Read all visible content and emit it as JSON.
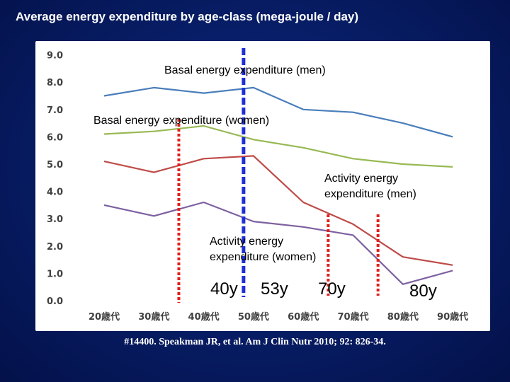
{
  "slide": {
    "title": "Average energy expenditure by age-class (mega-joule / day)",
    "citation": "#14400. Speakman JR, et al. Am J Clin Nutr 2010; 92: 826-34."
  },
  "chart_data": {
    "type": "line",
    "categories": [
      "20歳代",
      "30歳代",
      "40歳代",
      "50歳代",
      "60歳代",
      "70歳代",
      "80歳代",
      "90歳代"
    ],
    "ylim": [
      0,
      9
    ],
    "yticks": [
      "0.0",
      "1.0",
      "2.0",
      "3.0",
      "4.0",
      "5.0",
      "6.0",
      "7.0",
      "8.0",
      "9.0"
    ],
    "grid": false,
    "series": [
      {
        "name": "Basal energy expenditure (men)",
        "color": "#4a7ebb",
        "values": [
          7.5,
          7.8,
          7.6,
          7.8,
          7.0,
          6.9,
          6.5,
          6.0
        ]
      },
      {
        "name": "Basal energy expenditure (women)",
        "color": "#98b954",
        "values": [
          6.1,
          6.2,
          6.4,
          5.9,
          5.6,
          5.2,
          5.0,
          4.9
        ]
      },
      {
        "name": "Activity energy expenditure (men)",
        "color": "#be4b48",
        "values": [
          5.1,
          4.7,
          5.2,
          5.3,
          3.6,
          2.8,
          1.6,
          1.3
        ]
      },
      {
        "name": "Activity energy expenditure (women)",
        "color": "#7d60a0",
        "values": [
          3.5,
          3.1,
          3.6,
          2.9,
          2.7,
          2.4,
          0.6,
          1.1
        ]
      }
    ],
    "annotations": {
      "basal_men": "Basal energy expenditure (men)",
      "basal_women": "Basal energy expenditure (women)",
      "activity_men_line1": "Activity energy",
      "activity_men_line2": "expenditure (men)",
      "activity_women_line1": "Activity energy",
      "activity_women_line2": "expenditure (women)"
    },
    "age_markers": [
      {
        "label": "40y",
        "x": 40,
        "color": "#e0201d",
        "style": "dotted"
      },
      {
        "label": "53y",
        "x": 53,
        "color": "#1f2fd6",
        "style": "dashed"
      },
      {
        "label": "70y",
        "x": 70,
        "color": "#e0201d",
        "style": "dotted"
      },
      {
        "label": "80y",
        "x": 80,
        "color": "#e0201d",
        "style": "dotted"
      }
    ]
  }
}
